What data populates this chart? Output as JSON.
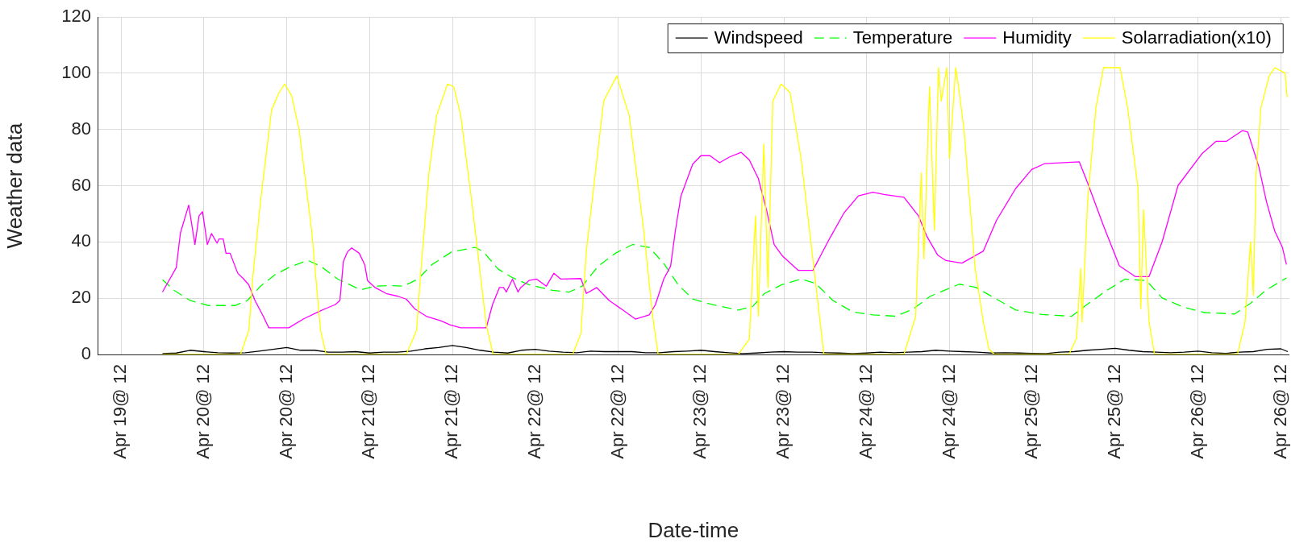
{
  "chart_data": {
    "type": "line",
    "xlabel": "Date-time",
    "ylabel": "Weather data",
    "xlim": [
      "--04-19T08:36",
      "--04-26T13:12"
    ],
    "ylim": [
      0,
      120
    ],
    "xticks": [
      {
        "value": "--04-19T12:00",
        "label": "Apr 19@ 12"
      },
      {
        "value": "--04-20T00:00",
        "label": "Apr 20@ 12"
      },
      {
        "value": "--04-20T12:00",
        "label": "Apr 20@ 12"
      },
      {
        "value": "--04-21T00:00",
        "label": "Apr 21@ 12"
      },
      {
        "value": "--04-21T12:00",
        "label": "Apr 21@ 12"
      },
      {
        "value": "--04-22T00:00",
        "label": "Apr 22@ 12"
      },
      {
        "value": "--04-22T12:00",
        "label": "Apr 22@ 12"
      },
      {
        "value": "--04-23T00:00",
        "label": "Apr 23@ 12"
      },
      {
        "value": "--04-23T12:00",
        "label": "Apr 23@ 12"
      },
      {
        "value": "--04-24T00:00",
        "label": "Apr 24@ 12"
      },
      {
        "value": "--04-24T12:00",
        "label": "Apr 24@ 12"
      },
      {
        "value": "--04-25T00:00",
        "label": "Apr 25@ 12"
      },
      {
        "value": "--04-25T12:00",
        "label": "Apr 25@ 12"
      },
      {
        "value": "--04-26T00:00",
        "label": "Apr 26@ 12"
      },
      {
        "value": "--04-26T12:00",
        "label": "Apr 26@ 12"
      }
    ],
    "yticks": [
      0,
      20,
      40,
      60,
      80,
      100,
      120
    ],
    "grid": true,
    "legend": "top right",
    "marker": "none",
    "series": [
      {
        "name": "Windspeed",
        "color": "#000000",
        "line_style": "solid",
        "x": [
          "--04-19T18:00",
          "--04-19T20:00",
          "--04-19T22:00",
          "--04-20T00:00",
          "--04-20T02:00",
          "--04-20T04:00",
          "--04-20T06:00",
          "--04-20T08:00",
          "--04-20T10:00",
          "--04-20T12:00",
          "--04-20T14:00",
          "--04-20T16:00",
          "--04-20T18:00",
          "--04-20T20:00",
          "--04-20T22:00",
          "--04-21T00:00",
          "--04-21T02:00",
          "--04-21T04:00",
          "--04-21T06:00",
          "--04-21T08:00",
          "--04-21T10:00",
          "--04-21T12:00",
          "--04-21T14:00",
          "--04-21T16:00",
          "--04-21T18:00",
          "--04-21T20:00",
          "--04-21T22:00",
          "--04-22T00:00",
          "--04-22T02:00",
          "--04-22T04:00",
          "--04-22T06:00",
          "--04-22T08:00",
          "--04-22T10:00",
          "--04-22T12:00",
          "--04-22T14:00",
          "--04-22T16:00",
          "--04-22T18:00",
          "--04-22T20:00",
          "--04-22T22:00",
          "--04-23T00:00",
          "--04-23T02:00",
          "--04-23T04:00",
          "--04-23T06:00",
          "--04-23T08:00",
          "--04-23T10:00",
          "--04-23T12:00",
          "--04-23T14:00",
          "--04-23T16:00",
          "--04-23T18:00",
          "--04-23T20:00",
          "--04-23T22:00",
          "--04-24T00:00",
          "--04-24T02:00",
          "--04-24T04:00",
          "--04-24T06:00",
          "--04-24T08:00",
          "--04-24T10:00",
          "--04-24T12:00",
          "--04-24T14:00",
          "--04-24T16:00",
          "--04-24T18:00",
          "--04-24T20:00",
          "--04-24T22:00",
          "--04-25T00:00",
          "--04-25T02:00",
          "--04-25T04:00",
          "--04-25T06:00",
          "--04-25T08:00",
          "--04-25T10:00",
          "--04-25T12:00",
          "--04-25T14:00",
          "--04-25T16:00",
          "--04-25T18:00",
          "--04-25T20:00",
          "--04-25T22:00",
          "--04-26T00:00",
          "--04-26T02:00",
          "--04-26T04:00",
          "--04-26T06:00",
          "--04-26T08:00",
          "--04-26T10:00",
          "--04-26T12:00",
          "--04-26T13:00"
        ],
        "values": [
          0.3,
          0.5,
          1.5,
          1,
          0.6,
          0.5,
          0.6,
          1.2,
          1.8,
          2.5,
          1.5,
          1.5,
          0.8,
          0.8,
          1,
          0.5,
          0.8,
          0.8,
          1.2,
          2,
          2.5,
          3.2,
          2.5,
          1.5,
          0.8,
          0.5,
          1.5,
          1.8,
          1.2,
          0.8,
          0.6,
          1.2,
          1,
          1,
          1,
          0.6,
          0.6,
          1,
          1.2,
          1.5,
          1,
          0.6,
          0.3,
          0.5,
          0.8,
          1,
          0.8,
          0.8,
          0.6,
          0.5,
          0.3,
          0.5,
          0.8,
          0.6,
          0.8,
          1,
          1.5,
          1.2,
          1,
          0.8,
          0.5,
          0.6,
          0.5,
          0.4,
          0.3,
          0.8,
          1,
          1.5,
          1.8,
          2.2,
          1.5,
          1,
          0.8,
          0.6,
          0.8,
          1.2,
          0.6,
          0.4,
          0.8,
          1,
          1.8,
          2,
          1
        ]
      },
      {
        "name": "Temperature",
        "color": "#00ff00",
        "line_style": "dashed",
        "x": [
          "--04-19T18:00",
          "--04-19T19:42",
          "--04-19T22:00",
          "--04-20T00:42",
          "--04-20T04:30",
          "--04-20T06:18",
          "--04-20T08:12",
          "--04-20T10:18",
          "--04-20T12:18",
          "--04-20T15:00",
          "--04-20T16:54",
          "--04-20T19:24",
          "--04-20T22:42",
          "--04-21T00:48",
          "--04-21T03:12",
          "--04-21T04:54",
          "--04-21T07:00",
          "--04-21T09:00",
          "--04-21T11:54",
          "--04-21T15:18",
          "--04-21T16:30",
          "--04-21T18:36",
          "--04-21T20:42",
          "--04-21T23:06",
          "--04-22T02:30",
          "--04-22T04:54",
          "--04-22T06:48",
          "--04-22T09:06",
          "--04-22T11:36",
          "--04-22T14:06",
          "--04-22T16:30",
          "--04-22T18:36",
          "--04-22T20:42",
          "--04-22T22:48",
          "--04-23T01:42",
          "--04-23T05:24",
          "--04-23T07:30",
          "--04-23T09:12",
          "--04-23T11:42",
          "--04-23T14:30",
          "--04-23T16:36",
          "--04-23T19:06",
          "--04-23T22:00",
          "--04-24T00:54",
          "--04-24T04:12",
          "--04-24T06:42",
          "--04-24T09:12",
          "--04-24T13:24",
          "--04-24T15:48",
          "--04-24T18:30",
          "--04-24T21:36",
          "--04-25T01:24",
          "--04-25T05:42",
          "--04-25T07:36",
          "--04-25T10:18",
          "--04-25T13:24",
          "--04-25T16:30",
          "--04-25T18:48",
          "--04-25T21:54",
          "--04-26T01:00",
          "--04-26T05:18",
          "--04-26T07:36",
          "--04-26T09:54",
          "--04-26T12:48"
        ],
        "values": [
          26.6,
          22.8,
          19.2,
          17.4,
          17.4,
          19.2,
          24.3,
          28.4,
          30.9,
          33.5,
          31.4,
          26.8,
          23,
          24.3,
          24.5,
          24.3,
          26.8,
          31.9,
          36.5,
          38.1,
          36.5,
          30.4,
          27.3,
          24.8,
          22.8,
          22.2,
          24.3,
          31.4,
          36,
          39.1,
          38.1,
          32.4,
          24.8,
          19.7,
          17.7,
          15.8,
          17.1,
          21.7,
          24.8,
          26.8,
          25.3,
          19.2,
          15.1,
          14.1,
          13.6,
          16.1,
          20.7,
          25,
          23.9,
          20.1,
          15.8,
          14.2,
          13.6,
          17.2,
          22,
          26.8,
          26.3,
          20.1,
          16.8,
          14.9,
          14.4,
          18.2,
          23,
          27.2
        ]
      },
      {
        "name": "Humidity",
        "color": "#ff00ff",
        "line_style": "solid",
        "x": [
          "--04-19T18:00",
          "--04-19T20:00",
          "--04-19T20:36",
          "--04-19T21:48",
          "--04-19T22:42",
          "--04-19T23:18",
          "--04-19T23:48",
          "--04-20T00:30",
          "--04-20T01:06",
          "--04-20T01:54",
          "--04-20T02:12",
          "--04-20T02:48",
          "--04-20T03:12",
          "--04-20T03:48",
          "--04-20T04:54",
          "--04-20T05:42",
          "--04-20T06:30",
          "--04-20T07:24",
          "--04-20T08:36",
          "--04-20T09:24",
          "--04-20T12:18",
          "--04-20T14:24",
          "--04-20T16:30",
          "--04-20T17:42",
          "--04-20T19:00",
          "--04-20T19:42",
          "--04-20T20:12",
          "--04-20T20:48",
          "--04-20T21:24",
          "--04-20T22:30",
          "--04-20T23:18",
          "--04-20T23:42",
          "--04-21T00:48",
          "--04-21T02:24",
          "--04-21T04:06",
          "--04-21T05:18",
          "--04-21T06:36",
          "--04-21T08:12",
          "--04-21T10:18",
          "--04-21T11:42",
          "--04-21T13:12",
          "--04-21T16:54",
          "--04-21T17:48",
          "--04-21T18:48",
          "--04-21T19:24",
          "--04-21T19:48",
          "--04-21T20:42",
          "--04-21T21:30",
          "--04-21T21:54",
          "--04-21T23:06",
          "--04-22T00:12",
          "--04-22T01:36",
          "--04-22T02:42",
          "--04-22T03:42",
          "--04-22T06:36",
          "--04-22T07:24",
          "--04-22T08:54",
          "--04-22T10:42",
          "--04-22T12:48",
          "--04-22T14:30",
          "--04-22T16:30",
          "--04-22T17:24",
          "--04-22T18:36",
          "--04-22T19:36",
          "--04-22T20:18",
          "--04-22T21:06",
          "--04-22T22:48",
          "--04-23T00:00",
          "--04-23T01:18",
          "--04-23T02:42",
          "--04-23T04:06",
          "--04-23T05:48",
          "--04-23T07:00",
          "--04-23T08:18",
          "--04-23T09:30",
          "--04-23T10:36",
          "--04-23T11:48",
          "--04-23T14:06",
          "--04-23T16:12",
          "--04-23T18:36",
          "--04-23T20:42",
          "--04-23T22:48",
          "--04-24T00:54",
          "--04-24T02:30",
          "--04-24T05:24",
          "--04-24T07:30",
          "--04-24T08:42",
          "--04-24T10:18",
          "--04-24T11:30",
          "--04-24T13:48",
          "--04-24T16:54",
          "--04-24T18:48",
          "--04-24T21:36",
          "--04-24T23:54",
          "--04-25T01:48",
          "--04-25T06:48",
          "--04-25T08:00",
          "--04-25T10:18",
          "--04-25T12:36",
          "--04-25T14:54",
          "--04-25T16:54",
          "--04-25T18:48",
          "--04-25T21:06",
          "--04-26T00:36",
          "--04-26T02:36",
          "--04-26T04:06",
          "--04-26T06:24",
          "--04-26T07:12",
          "--04-26T08:48",
          "--04-26T09:54",
          "--04-26T11:06",
          "--04-26T12:12",
          "--04-26T12:48"
        ],
        "values": [
          22.2,
          30.9,
          43.2,
          53.1,
          39.1,
          49.3,
          50.8,
          39.1,
          43,
          39.6,
          41.1,
          41.1,
          36,
          36,
          28.9,
          27,
          24.8,
          19.2,
          13.6,
          9.5,
          9.5,
          12.6,
          15.1,
          16.4,
          17.7,
          19.2,
          33,
          36.5,
          37.9,
          36,
          31.9,
          26.3,
          23.8,
          21.7,
          20.7,
          19.7,
          16.1,
          13.6,
          12,
          10.5,
          9.5,
          9.5,
          17.7,
          23.8,
          23.8,
          22.2,
          26.8,
          22.2,
          23.8,
          26.3,
          26.8,
          24.3,
          28.9,
          26.8,
          27,
          21.7,
          23.8,
          19.2,
          15.6,
          12.6,
          14.1,
          17.7,
          26.8,
          31.4,
          44.2,
          56.4,
          67.7,
          70.7,
          70.7,
          68.2,
          70.2,
          71.9,
          69.2,
          62.6,
          51.3,
          39.1,
          35,
          29.9,
          29.9,
          41.1,
          50.3,
          56.4,
          57.7,
          56.9,
          55.9,
          49.3,
          42.1,
          35.3,
          33.4,
          32.5,
          36.8,
          47.7,
          59.1,
          65.8,
          67.9,
          68.5,
          61,
          45.8,
          31.5,
          27.7,
          27.7,
          40.1,
          60.1,
          71.5,
          75.8,
          75.8,
          79.6,
          79.1,
          66.8,
          54.4,
          43.9,
          38.2,
          32
        ]
      },
      {
        "name": "Solarradiation(x10)",
        "color": "#ffff00",
        "line_style": "solid",
        "x": [
          "--04-19T18:00",
          "--04-20T05:18",
          "--04-20T06:30",
          "--04-20T07:06",
          "--04-20T08:12",
          "--04-20T09:48",
          "--04-20T10:54",
          "--04-20T11:42",
          "--04-20T12:42",
          "--04-20T13:48",
          "--04-20T15:36",
          "--04-20T16:54",
          "--04-20T17:42",
          "--04-21T05:18",
          "--04-21T06:48",
          "--04-21T07:24",
          "--04-21T08:36",
          "--04-21T09:42",
          "--04-21T11:18",
          "--04-21T12:12",
          "--04-21T13:12",
          "--04-21T14:48",
          "--04-21T16:54",
          "--04-21T17:54",
          "--04-22T05:24",
          "--04-22T06:36",
          "--04-22T07:24",
          "--04-22T08:42",
          "--04-22T09:54",
          "--04-22T11:48",
          "--04-22T13:36",
          "--04-22T15:42",
          "--04-22T17:00",
          "--04-22T17:48",
          "--04-23T05:24",
          "--04-23T07:00",
          "--04-23T07:54",
          "--04-23T08:18",
          "--04-23T09:06",
          "--04-23T09:42",
          "--04-23T10:24",
          "--04-23T11:36",
          "--04-23T12:54",
          "--04-23T14:30",
          "--04-23T16:12",
          "--04-23T17:48",
          "--04-24T05:24",
          "--04-24T07:06",
          "--04-24T07:54",
          "--04-24T08:18",
          "--04-24T09:06",
          "--04-24T09:48",
          "--04-24T10:24",
          "--04-24T10:48",
          "--04-24T11:36",
          "--04-24T12:00",
          "--04-24T12:54",
          "--04-24T13:18",
          "--04-24T14:06",
          "--04-24T15:42",
          "--04-24T16:54",
          "--04-24T17:42",
          "--04-24T18:30",
          "--04-25T05:18",
          "--04-25T06:24",
          "--04-25T07:00",
          "--04-25T07:12",
          "--04-25T08:00",
          "--04-25T09:12",
          "--04-25T10:18",
          "--04-25T12:42",
          "--04-25T13:48",
          "--04-25T15:18",
          "--04-25T15:42",
          "--04-25T16:06",
          "--04-25T16:54",
          "--04-25T17:42",
          "--04-26T05:42",
          "--04-26T06:48",
          "--04-26T07:36",
          "--04-26T08:00",
          "--04-26T08:24",
          "--04-26T09:06",
          "--04-26T10:18",
          "--04-26T11:06",
          "--04-26T12:36",
          "--04-26T12:54"
        ],
        "values": [
          0,
          0,
          8.5,
          27.9,
          54.4,
          87,
          93.2,
          96.2,
          92.1,
          79.9,
          44.2,
          8.5,
          0,
          0,
          8.5,
          28.9,
          64.6,
          85,
          96.2,
          95.2,
          85,
          54.4,
          10.5,
          0,
          0,
          7.4,
          37,
          64.6,
          90.1,
          99.1,
          85,
          44.2,
          13.6,
          0,
          0,
          5.4,
          49.3,
          13.6,
          74.8,
          23.8,
          90.1,
          96.2,
          93.2,
          69.7,
          34,
          0,
          0,
          13.6,
          64.6,
          34,
          95.2,
          44.2,
          102,
          90.1,
          102,
          69.7,
          102,
          95.2,
          79.9,
          30.6,
          11.5,
          2,
          0,
          0,
          5.8,
          30.6,
          11.5,
          54.4,
          87.7,
          102,
          102,
          87.7,
          59.1,
          16.3,
          51.5,
          11.5,
          0,
          0,
          11.5,
          40.1,
          21,
          63.9,
          87.7,
          99.1,
          102,
          100.1,
          91.5
        ]
      }
    ]
  }
}
